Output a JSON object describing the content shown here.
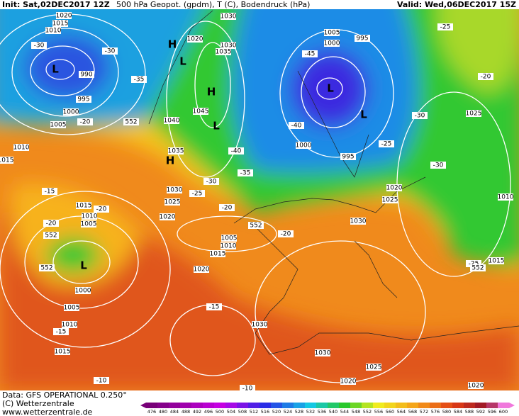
{
  "header": {
    "init": "Init: Sat,02DEC2017 12Z",
    "field": "500 hPa Geopot. (gpdm), T (C), Bodendruck (hPa)",
    "valid": "Valid: Wed,06DEC2017 15Z"
  },
  "footer": {
    "data": "Data: GFS OPERATIONAL 0.250°",
    "copyright": "(C) Wetterzentrale",
    "url": "www.wetterzentrale.de"
  },
  "colorbar": [
    476,
    480,
    484,
    488,
    492,
    496,
    500,
    504,
    508,
    512,
    516,
    520,
    524,
    528,
    532,
    536,
    540,
    544,
    548,
    552,
    556,
    560,
    564,
    568,
    572,
    576,
    580,
    584,
    588,
    592,
    596,
    600
  ],
  "pressure_labels": [
    "1020",
    "1015",
    "1010",
    "990",
    "995",
    "1000",
    "1005",
    "1010",
    "1015",
    "1030",
    "1020",
    "1030",
    "1035",
    "1045",
    "1040",
    "1035",
    "1030",
    "1025",
    "1020",
    "1015",
    "1010",
    "1005",
    "1005",
    "1010",
    "1015",
    "1020",
    "1000",
    "1005",
    "1010",
    "1015",
    "1030",
    "1030",
    "1025",
    "1020",
    "1020",
    "1015",
    "1010",
    "1025",
    "1020",
    "1025",
    "1030",
    "1005",
    "1000",
    "995",
    "1000",
    "995"
  ],
  "temperature_labels": [
    "-30",
    "-30",
    "-35",
    "-20",
    "-40",
    "-45",
    "-40",
    "-35",
    "-30",
    "-25",
    "-20",
    "-20",
    "-25",
    "-30",
    "-30",
    "-25",
    "-20",
    "-25",
    "-15",
    "-20",
    "-20",
    "-15",
    "-15",
    "-10",
    "-10"
  ],
  "geopotential_labels": [
    "552",
    "552",
    "552",
    "552",
    "552"
  ],
  "pressure_centers": [
    "H",
    "L",
    "H",
    "L",
    "H",
    "L",
    "L",
    "L",
    "L"
  ]
}
